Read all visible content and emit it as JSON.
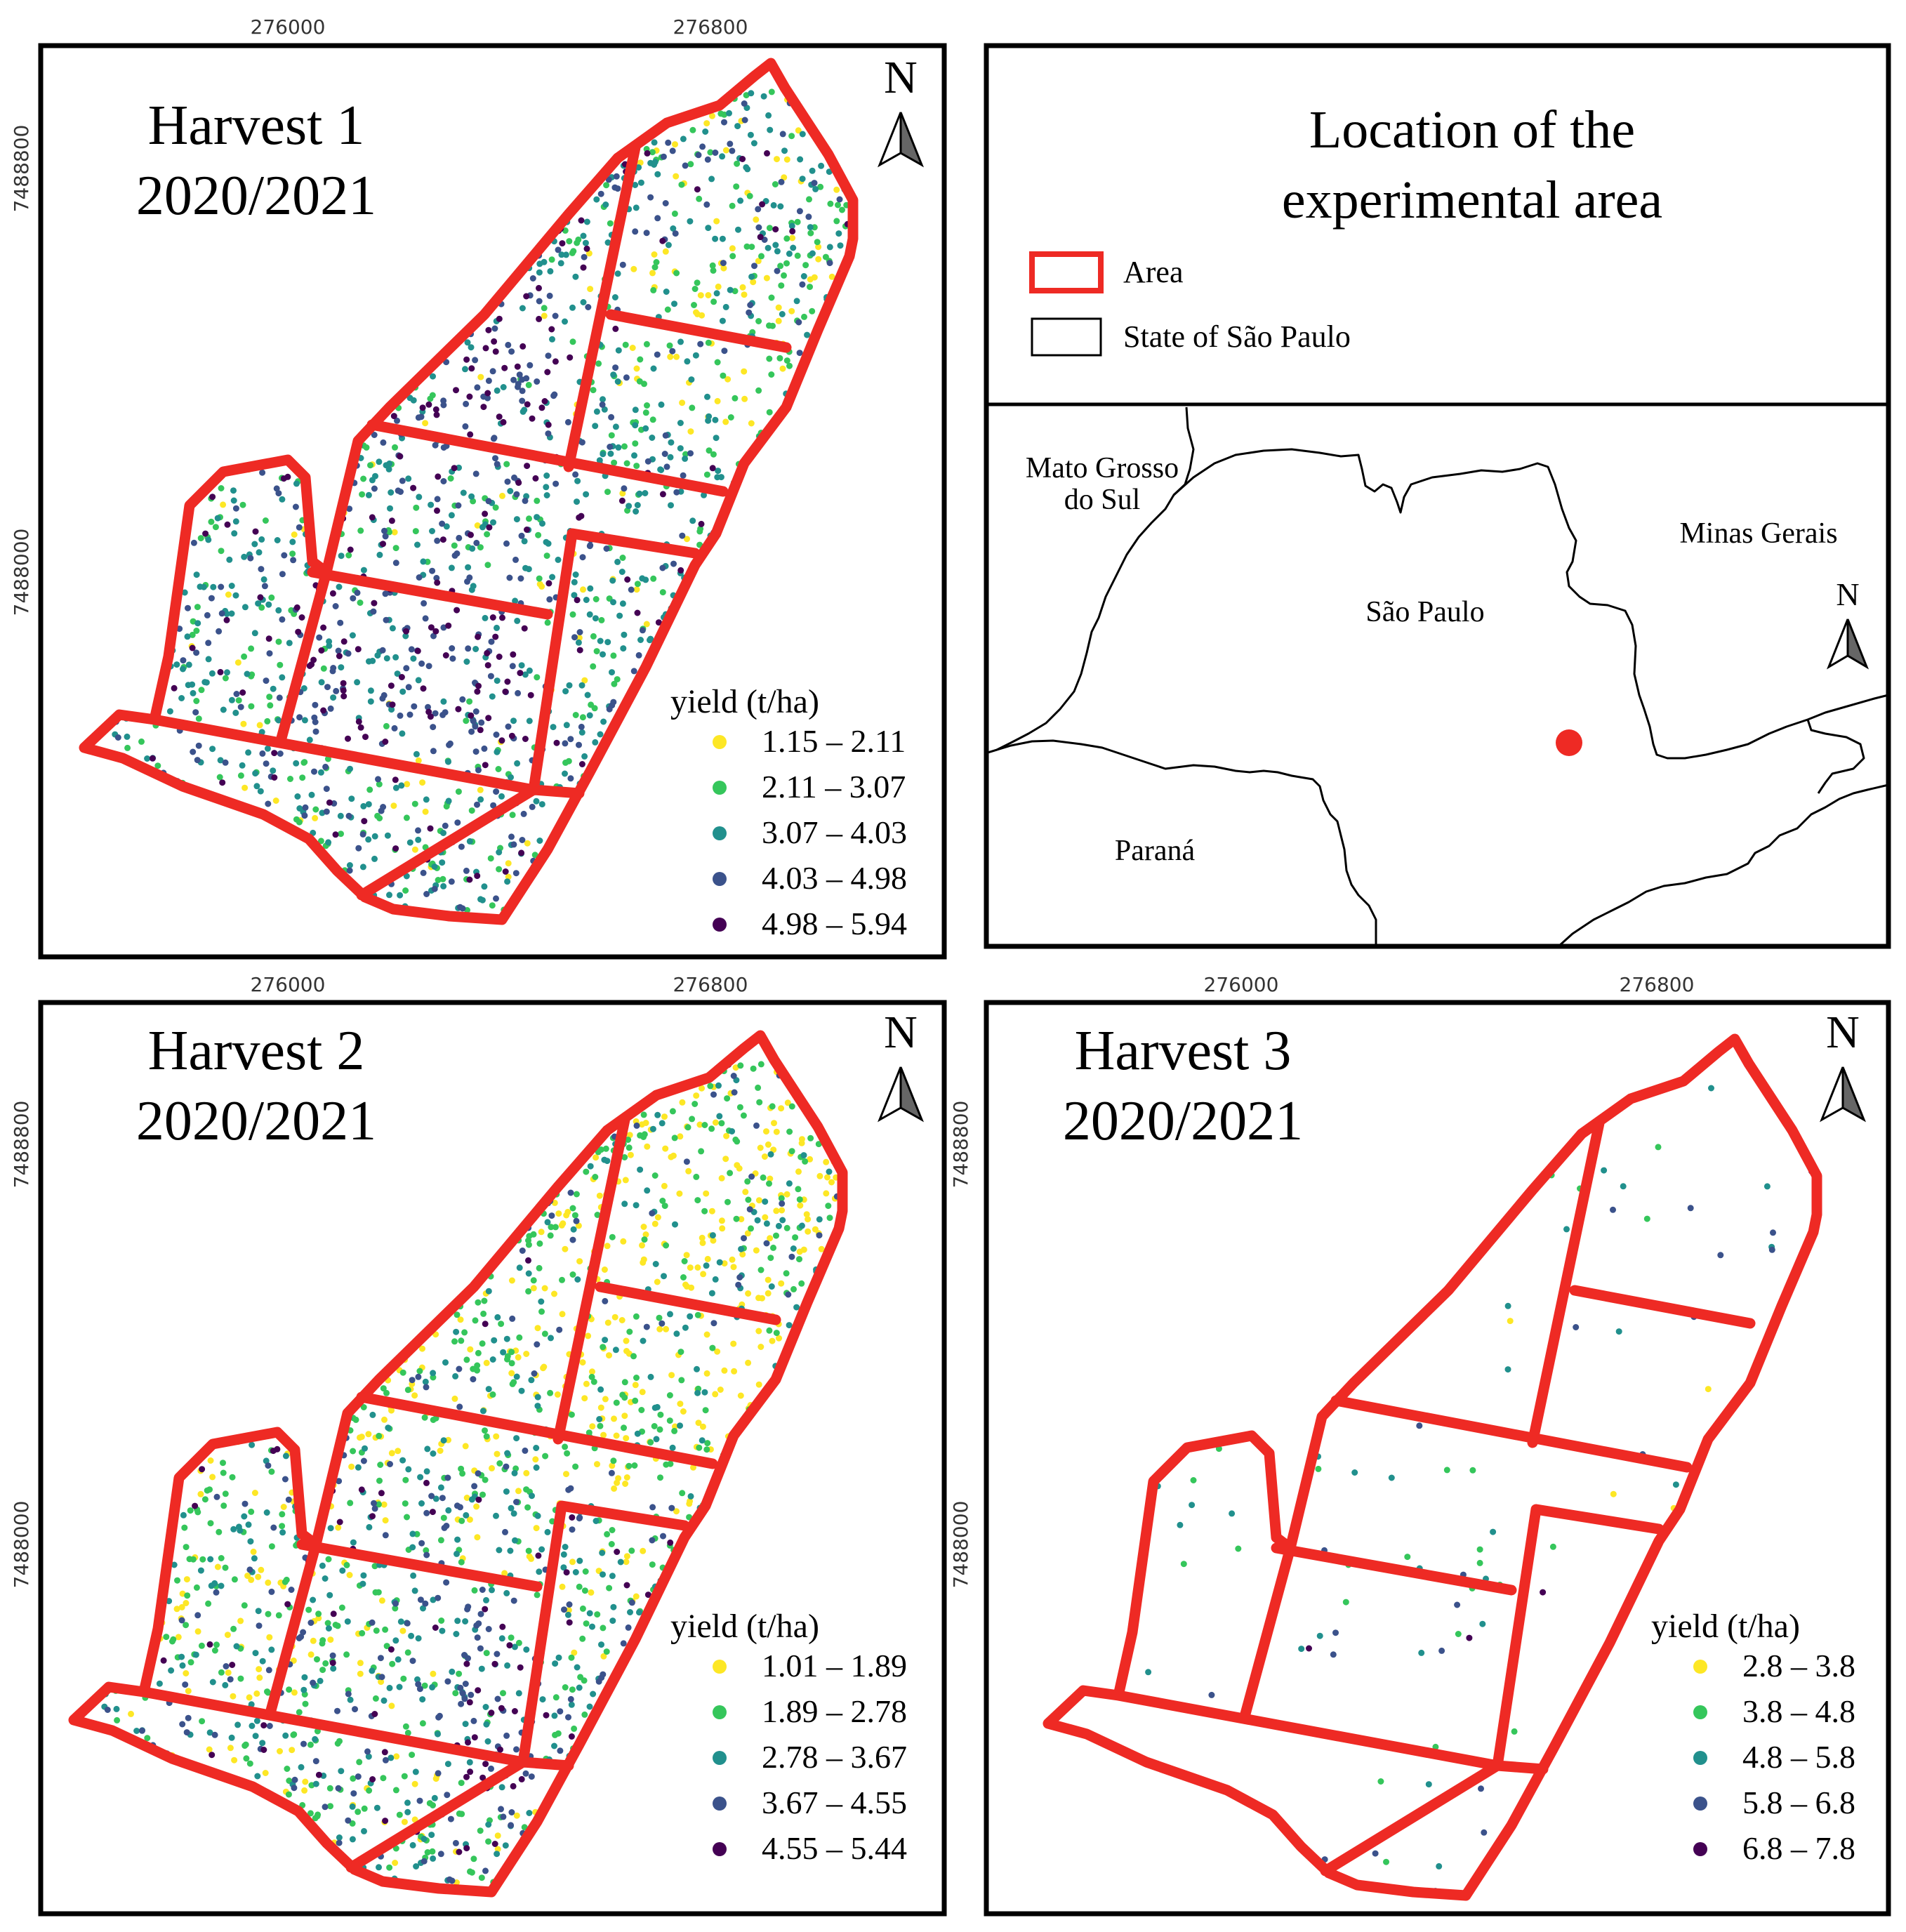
{
  "colors": {
    "c1": "#fde725",
    "c2": "#35c65b",
    "c3": "#21908d",
    "c4": "#3b528b",
    "c5": "#440154",
    "boundary": "#ee2a24"
  },
  "axes": {
    "x_ticks": [
      "276000",
      "276800"
    ],
    "y_ticks": [
      "7488800",
      "7488000"
    ]
  },
  "north_label": "N",
  "harvests": [
    {
      "title_line1": "Harvest 1",
      "title_line2": "2020/2021",
      "legend_title": "yield (t/ha)",
      "classes": [
        "1.15 – 2.11",
        "2.11 – 3.07",
        "3.07 – 4.03",
        "4.03 – 4.98",
        "4.98 – 5.94"
      ],
      "class_weights": [
        0.06,
        0.24,
        0.4,
        0.22,
        0.08
      ]
    },
    {
      "title_line1": "Harvest 2",
      "title_line2": "2020/2021",
      "legend_title": "yield (t/ha)",
      "classes": [
        "1.01 – 1.89",
        "1.89 – 2.78",
        "2.78 – 3.67",
        "3.67 – 4.55",
        "4.55 – 5.44"
      ],
      "class_weights": [
        0.16,
        0.3,
        0.32,
        0.16,
        0.06
      ]
    },
    {
      "title_line1": "Harvest 3",
      "title_line2": "2020/2021",
      "legend_title": "yield (t/ha)",
      "classes": [
        "2.8 – 3.8",
        "3.8 – 4.8",
        "4.8 – 5.8",
        "5.8 – 6.8",
        "6.8 – 7.8"
      ],
      "class_weights": [
        0.05,
        0.36,
        0.38,
        0.18,
        0.03
      ]
    }
  ],
  "location": {
    "title_line1": "Location of the",
    "title_line2": "experimental area",
    "legend_area": "Area",
    "legend_state": "State of São Paulo",
    "states": {
      "ms_line1": "Mato Grosso",
      "ms_line2": "do Sul",
      "mg": "Minas Gerais",
      "sp": "São Paulo",
      "pr": "Paraná"
    }
  }
}
